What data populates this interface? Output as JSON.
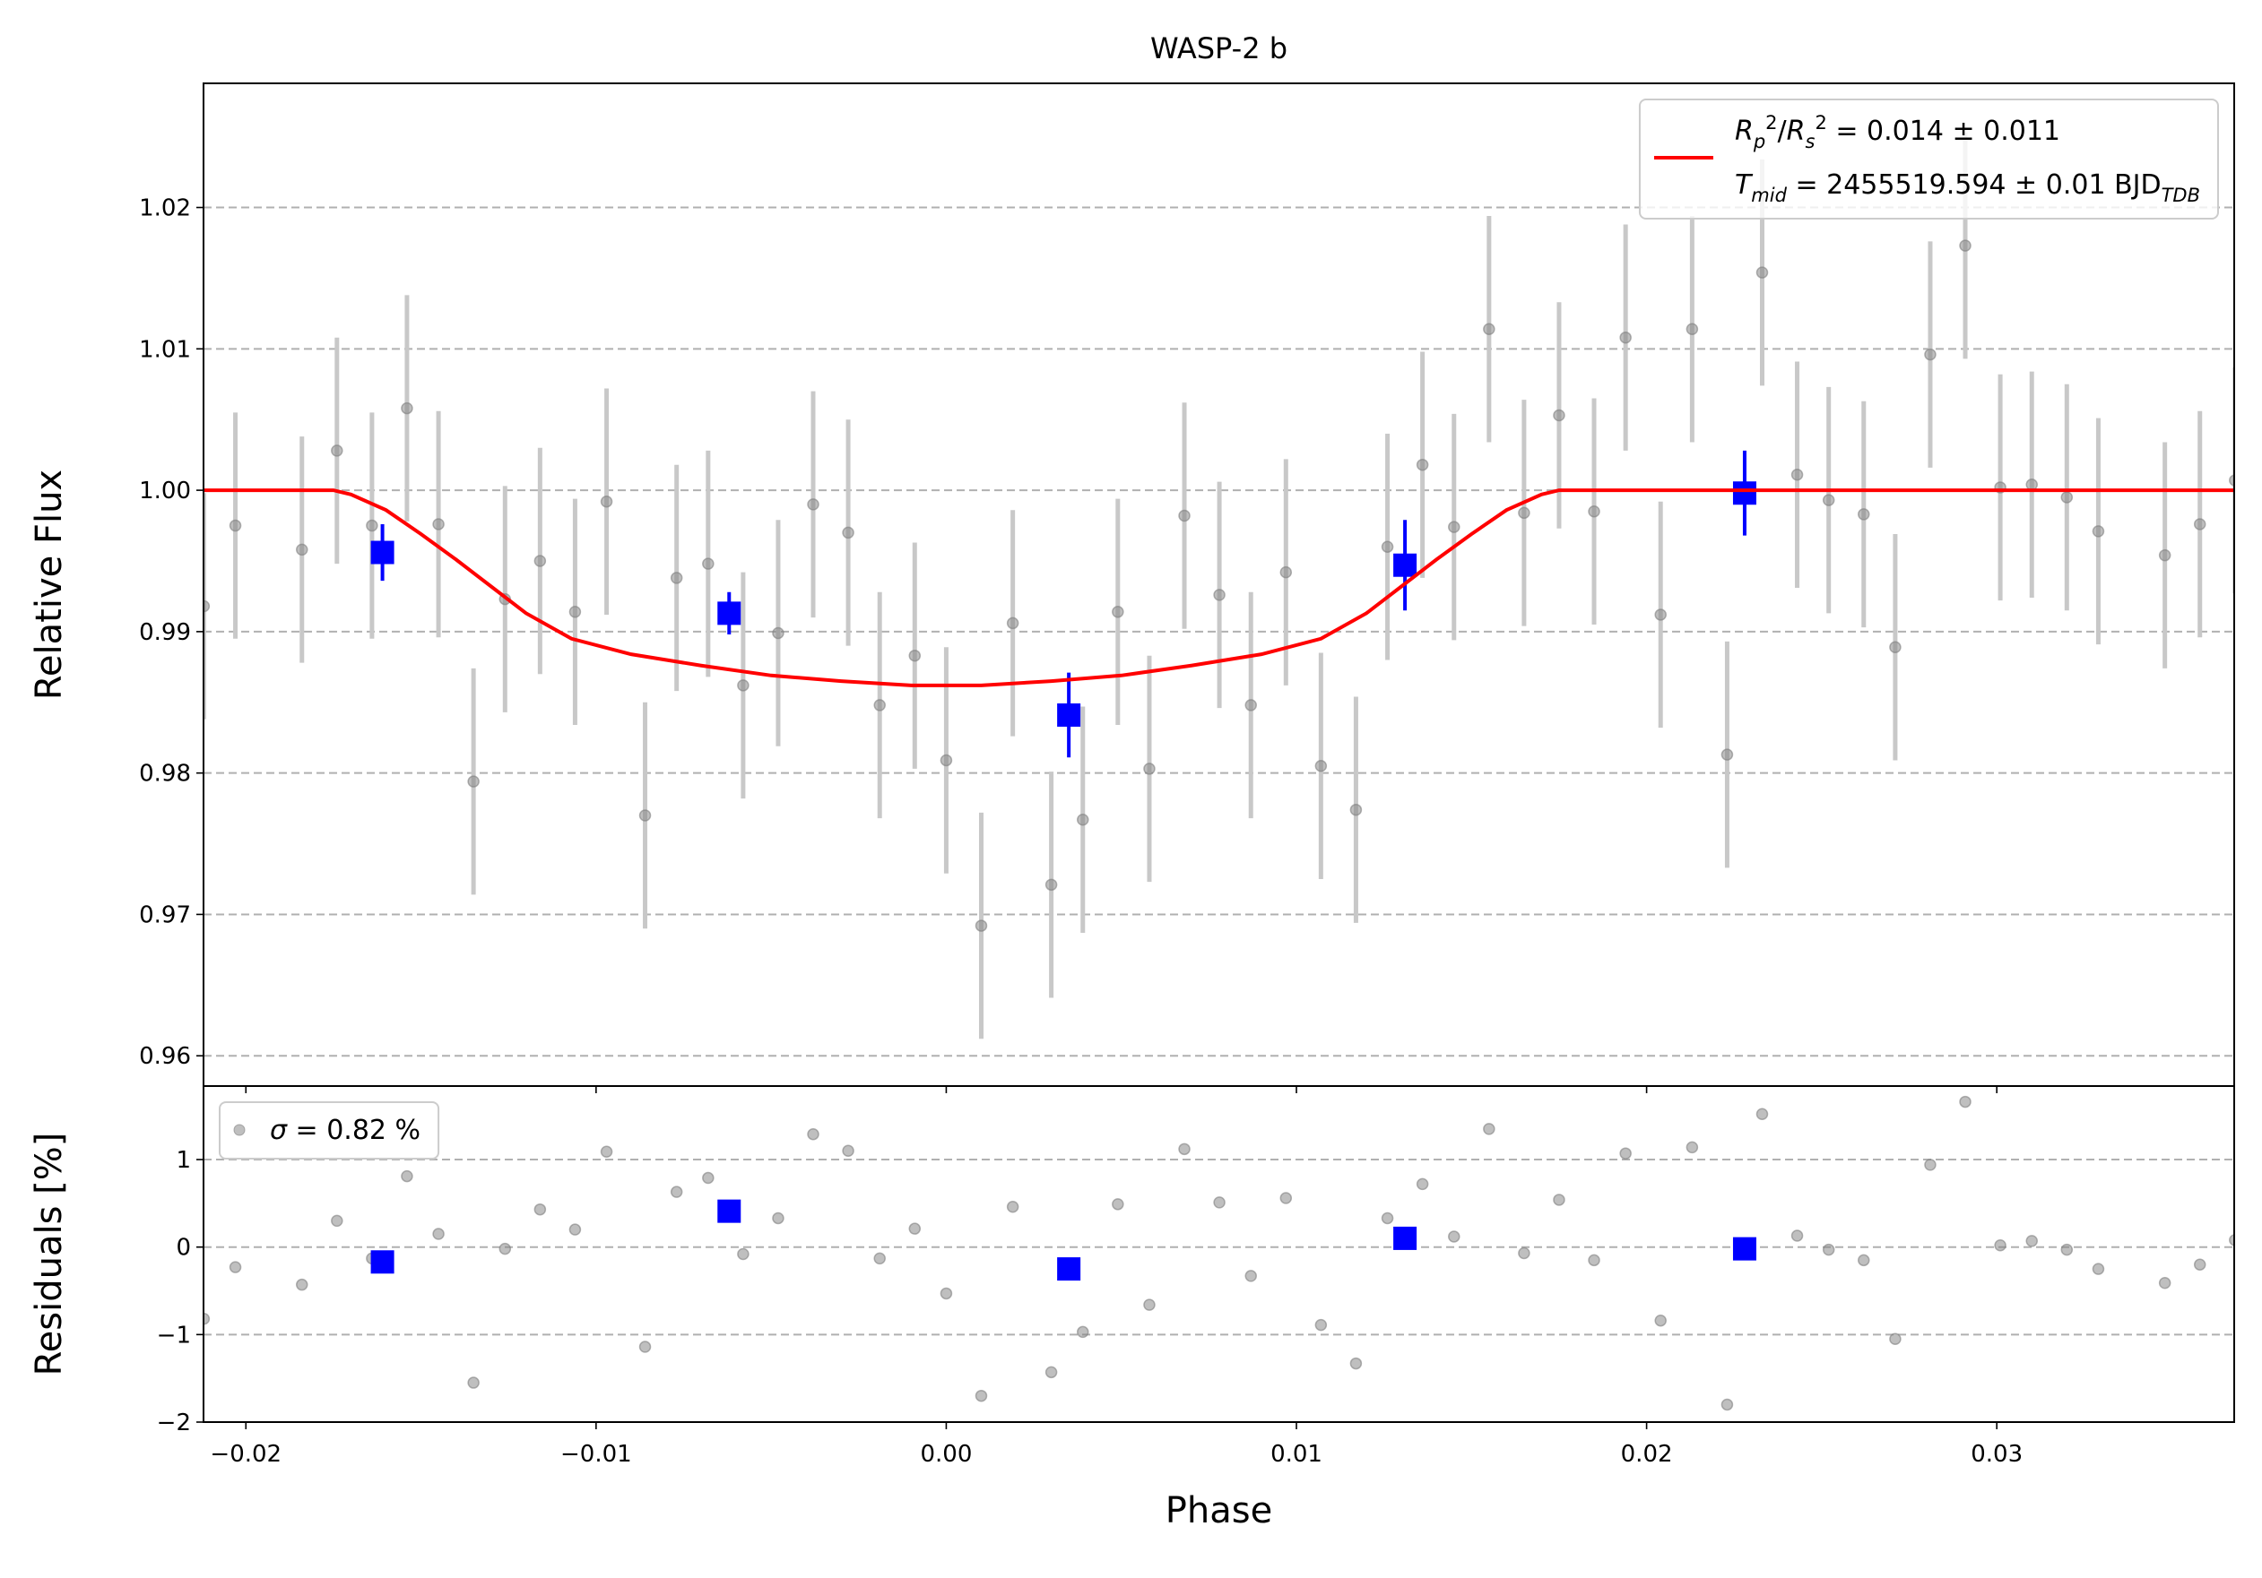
{
  "chart_data": [
    {
      "type": "scatter",
      "title": "WASP-2 b",
      "ylabel": "Relative Flux",
      "xlim": [
        -0.02121,
        0.03678
      ],
      "ylim": [
        0.95786,
        1.02878
      ],
      "yticks": [
        0.96,
        0.97,
        0.98,
        0.99,
        {
          "value": 1.0,
          "label": "1.00"
        },
        1.01,
        1.02
      ],
      "grid": true,
      "legend": "upper right",
      "series": [
        {
          "color": "#808080",
          "error_color": "#c8c8c8",
          "style": "points",
          "x": [
            -0.0212,
            -0.0203,
            -0.0184,
            -0.0174,
            -0.0164,
            -0.0154,
            -0.0145,
            -0.0135,
            -0.0126,
            -0.0116,
            -0.0106,
            -0.0097,
            -0.0086,
            -0.0077,
            -0.0068,
            -0.0058,
            -0.0048,
            -0.0038,
            -0.0028,
            -0.0019,
            -0.0009,
            0.0,
            0.001,
            0.0019,
            0.003,
            0.0039,
            0.0049,
            0.0058,
            0.0068,
            0.0078,
            0.0087,
            0.0097,
            0.0107,
            0.0117,
            0.0126,
            0.0136,
            0.0145,
            0.0155,
            0.0165,
            0.0175,
            0.0185,
            0.0194,
            0.0204,
            0.0213,
            0.0223,
            0.0233,
            0.0243,
            0.0252,
            0.0262,
            0.0271,
            0.0281,
            0.0291,
            0.0301,
            0.031,
            0.032,
            0.0329,
            0.0348,
            0.0358,
            0.0368
          ],
          "values": [
            0.9918,
            0.9975,
            0.9958,
            1.0028,
            0.9975,
            1.0058,
            0.9976,
            0.9794,
            0.9923,
            0.995,
            0.9914,
            0.9992,
            0.977,
            0.9938,
            0.9948,
            0.9862,
            0.9899,
            0.999,
            0.997,
            0.9848,
            0.9883,
            0.9809,
            0.9692,
            0.9906,
            0.9721,
            0.9767,
            0.9914,
            0.9803,
            0.9982,
            0.9926,
            0.9848,
            0.9942,
            0.9805,
            0.9774,
            0.996,
            1.0018,
            0.9974,
            1.0114,
            0.9984,
            1.0053,
            0.9985,
            1.0108,
            0.9912,
            1.0114,
            0.9813,
            1.0154,
            1.0011,
            0.9993,
            0.9983,
            0.9889,
            1.0096,
            1.0173,
            1.0002,
            1.0004,
            0.9995,
            0.9971,
            0.9954,
            0.9976,
            1.0007
          ],
          "errors": [
            0.008,
            0.008,
            0.008,
            0.008,
            0.008,
            0.008,
            0.008,
            0.008,
            0.008,
            0.008,
            0.008,
            0.008,
            0.008,
            0.008,
            0.008,
            0.008,
            0.008,
            0.008,
            0.008,
            0.008,
            0.008,
            0.008,
            0.008,
            0.008,
            0.008,
            0.008,
            0.008,
            0.008,
            0.008,
            0.008,
            0.008,
            0.008,
            0.008,
            0.008,
            0.008,
            0.008,
            0.008,
            0.008,
            0.008,
            0.008,
            0.008,
            0.008,
            0.008,
            0.008,
            0.008,
            0.008,
            0.008,
            0.008,
            0.008,
            0.008,
            0.008,
            0.008,
            0.008,
            0.008,
            0.008,
            0.008,
            0.008,
            0.008,
            0.008
          ]
        },
        {
          "color": "#0000ff",
          "style": "squares",
          "x": [
            -0.0161,
            -0.0062,
            0.0035,
            0.0131,
            0.0228
          ],
          "values": [
            0.9956,
            0.9913,
            0.9841,
            0.9947,
            0.9998
          ],
          "errors": [
            0.002,
            0.0015,
            0.003,
            0.0032,
            0.003
          ]
        },
        {
          "name": [
            [
              {
                "text": "R",
                "italic": true
              },
              {
                "text": "p",
                "italic": true,
                "shift": "sub"
              },
              {
                "text": "2",
                "shift": "sup"
              },
              {
                "text": "/"
              },
              {
                "text": "R",
                "italic": true
              },
              {
                "text": "s",
                "italic": true,
                "shift": "sub"
              },
              {
                "text": "2",
                "shift": "sup"
              },
              {
                "text": " = 0.014 ± 0.011"
              }
            ],
            [
              {
                "text": "T",
                "italic": true
              },
              {
                "text": "mid",
                "italic": true,
                "shift": "sub"
              },
              {
                "text": " = 2455519.594 ± 0.01 BJD"
              },
              {
                "text": "TDB",
                "italic": true,
                "shift": "sub"
              }
            ]
          ],
          "color": "#ff0000",
          "style": "line",
          "x": [
            -0.0212,
            -0.0175,
            -0.017,
            -0.016,
            -0.015,
            -0.014,
            -0.013,
            -0.012,
            -0.0107,
            -0.009,
            -0.007,
            -0.005,
            -0.003,
            -0.001,
            0.0,
            0.001,
            0.003,
            0.005,
            0.007,
            0.009,
            0.0107,
            0.012,
            0.013,
            0.014,
            0.015,
            0.016,
            0.017,
            0.0175,
            0.0368
          ],
          "values": [
            1.0,
            1.0,
            0.9997,
            0.9986,
            0.9969,
            0.9951,
            0.9932,
            0.9913,
            0.9895,
            0.9884,
            0.9876,
            0.9869,
            0.9865,
            0.9862,
            0.9862,
            0.9862,
            0.9865,
            0.9869,
            0.9876,
            0.9884,
            0.9895,
            0.9913,
            0.9932,
            0.9951,
            0.9969,
            0.9986,
            0.9997,
            1.0,
            1.0
          ]
        }
      ]
    },
    {
      "type": "scatter",
      "xlabel": "Phase",
      "ylabel": "Residuals [%]",
      "xlim": [
        -0.02121,
        0.03678
      ],
      "ylim": [
        -2,
        1.84
      ],
      "xticks": [
        {
          "value": -0.02,
          "label": "−0.02"
        },
        {
          "value": -0.01,
          "label": "−0.01"
        },
        {
          "value": 0,
          "label": "0.00"
        },
        0.01,
        0.02,
        0.03
      ],
      "yticks": [
        {
          "value": -2,
          "label": "−2"
        },
        {
          "value": -1,
          "label": "−1"
        },
        0,
        1
      ],
      "grid": true,
      "legend": "upper left",
      "series": [
        {
          "name": [
            [
              {
                "text": "σ",
                "italic": true
              },
              {
                "text": " = 0.82 %"
              }
            ]
          ],
          "color": "#808080",
          "style": "points",
          "x": [
            -0.0212,
            -0.0203,
            -0.0184,
            -0.0174,
            -0.0164,
            -0.0154,
            -0.0145,
            -0.0135,
            -0.0126,
            -0.0116,
            -0.0106,
            -0.0097,
            -0.0086,
            -0.0077,
            -0.0068,
            -0.0058,
            -0.0048,
            -0.0038,
            -0.0028,
            -0.0019,
            -0.0009,
            0.0,
            0.001,
            0.0019,
            0.003,
            0.0039,
            0.0049,
            0.0058,
            0.0068,
            0.0078,
            0.0087,
            0.0097,
            0.0107,
            0.0117,
            0.0126,
            0.0136,
            0.0145,
            0.0155,
            0.0165,
            0.0175,
            0.0185,
            0.0194,
            0.0204,
            0.0213,
            0.0223,
            0.0233,
            0.0243,
            0.0252,
            0.0262,
            0.0271,
            0.0281,
            0.0291,
            0.0301,
            0.031,
            0.032,
            0.0329,
            0.0348,
            0.0358,
            0.0368
          ],
          "values": [
            -0.82,
            -0.23,
            -0.43,
            0.3,
            -0.13,
            0.81,
            0.15,
            -1.55,
            -0.02,
            0.43,
            0.2,
            1.09,
            -1.14,
            0.63,
            0.79,
            -0.08,
            0.33,
            1.29,
            1.1,
            -0.13,
            0.21,
            -0.53,
            -1.7,
            0.46,
            -1.43,
            -0.97,
            0.49,
            -0.66,
            1.12,
            0.51,
            -0.33,
            0.56,
            -0.89,
            -1.33,
            0.33,
            0.72,
            0.12,
            1.35,
            -0.07,
            0.54,
            -0.15,
            1.07,
            -0.84,
            1.14,
            -1.8,
            1.52,
            0.13,
            -0.03,
            -0.15,
            -1.05,
            0.94,
            1.66,
            0.02,
            0.07,
            -0.03,
            -0.25,
            -0.41,
            -0.2,
            0.08
          ]
        },
        {
          "color": "#0000ff",
          "style": "squares",
          "x": [
            -0.0161,
            -0.0062,
            0.0035,
            0.0131,
            0.0228
          ],
          "values": [
            -0.17,
            0.41,
            -0.25,
            0.1,
            -0.02
          ]
        }
      ]
    }
  ]
}
